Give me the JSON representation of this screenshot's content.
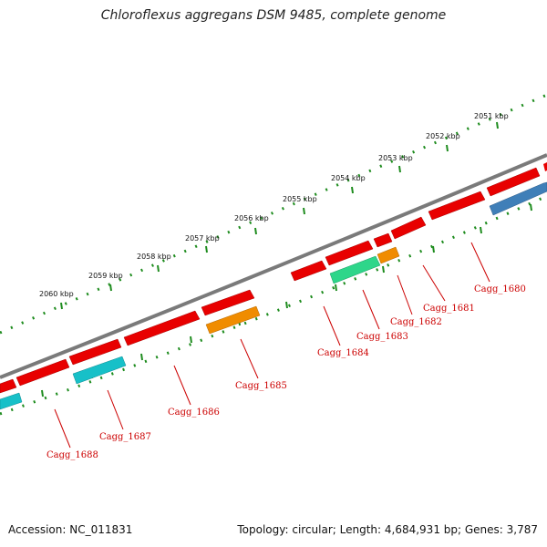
{
  "title": "Chloroflexus aggregans DSM 9485, complete genome",
  "footer": {
    "accession": "Accession: NC_011831",
    "summary": "Topology: circular; Length: 4,684,931 bp; Genes: 3,787"
  },
  "colors": {
    "backbone": "#7a7a7a",
    "ticks": "#1e8c1e",
    "gene_red": "#e80000",
    "gene_cyan": "#17c0c8",
    "gene_orange": "#f08c00",
    "gene_green": "#2ed68a",
    "gene_blue": "#3f7fb8",
    "label_text": "#cc0000"
  },
  "kbp_labels": [
    "2051 kbp",
    "2052 kbp",
    "2053 kbp",
    "2054 kbp",
    "2055 kbp",
    "2056 kbp",
    "2057 kbp",
    "2058 kbp",
    "2059 kbp",
    "2060 kbp"
  ],
  "gene_labels": [
    "Cagg_1680",
    "Cagg_1681",
    "Cagg_1682",
    "Cagg_1683",
    "Cagg_1684",
    "Cagg_1685",
    "Cagg_1686",
    "Cagg_1687",
    "Cagg_1688"
  ]
}
